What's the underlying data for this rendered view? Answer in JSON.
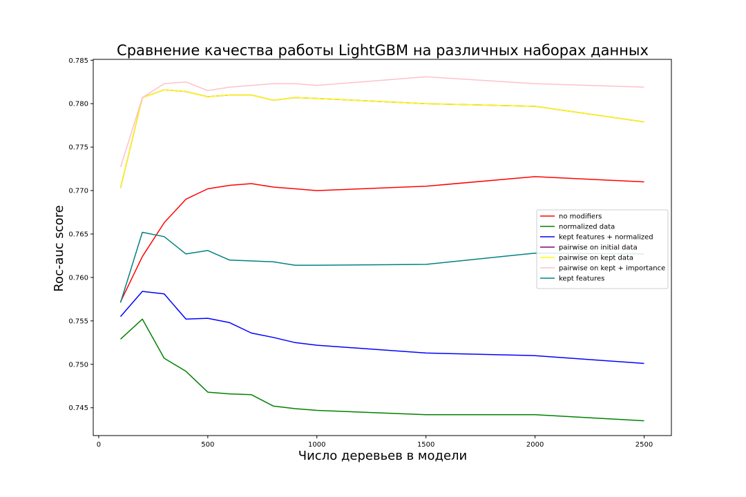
{
  "chart_data": {
    "type": "line",
    "title": "Сравнение качества работы LightGBM на различных наборах данных",
    "xlabel": "Число деревьев в модели",
    "ylabel": "Roc-auc score",
    "xlim": [
      -25,
      2625
    ],
    "ylim": [
      0.7418,
      0.7851
    ],
    "xticks": [
      0,
      500,
      1000,
      1500,
      2000,
      2500
    ],
    "xtick_labels": [
      "0",
      "500",
      "1000",
      "1500",
      "2000",
      "2500"
    ],
    "yticks": [
      0.745,
      0.75,
      0.755,
      0.76,
      0.765,
      0.77,
      0.775,
      0.78,
      0.785
    ],
    "ytick_labels": [
      "0.745",
      "0.750",
      "0.755",
      "0.760",
      "0.765",
      "0.770",
      "0.775",
      "0.780",
      "0.785"
    ],
    "grid": false,
    "legend_position": "center-right",
    "x": [
      100,
      200,
      300,
      400,
      500,
      600,
      700,
      800,
      900,
      1000,
      1500,
      2000,
      2500
    ],
    "series": [
      {
        "name": "no modifiers",
        "color": "#ff0000",
        "values": [
          0.7572,
          0.7624,
          0.7663,
          0.769,
          0.7702,
          0.7706,
          0.7708,
          0.7704,
          0.7702,
          0.77,
          0.7705,
          0.7716,
          0.771
        ]
      },
      {
        "name": "normalized data",
        "color": "#008000",
        "values": [
          0.7529,
          0.7552,
          0.7507,
          0.7492,
          0.7468,
          0.7466,
          0.7465,
          0.7452,
          0.7449,
          0.7447,
          0.7442,
          0.7442,
          0.7435
        ]
      },
      {
        "name": "kept features + normalized",
        "color": "#0000ff",
        "values": [
          0.7555,
          0.7584,
          0.7581,
          0.7552,
          0.7553,
          0.7548,
          0.7536,
          0.7531,
          0.7525,
          0.7522,
          0.7513,
          0.751,
          0.7501
        ]
      },
      {
        "name": "pairwise on initial data",
        "color": "#800080",
        "values": [
          0.7703,
          0.7807,
          0.7816,
          0.7814,
          0.7808,
          0.781,
          0.781,
          0.7804,
          0.7807,
          0.7806,
          0.78,
          0.7797,
          0.7779
        ]
      },
      {
        "name": "pairwise on kept data",
        "color": "#ffff00",
        "values": [
          0.7703,
          0.7807,
          0.7816,
          0.7814,
          0.7808,
          0.781,
          0.781,
          0.7804,
          0.7807,
          0.7806,
          0.78,
          0.7797,
          0.7779
        ]
      },
      {
        "name": "pairwise on kept + importance",
        "color": "#ffc0cb",
        "values": [
          0.7727,
          0.7807,
          0.7823,
          0.7825,
          0.7815,
          0.7819,
          0.7821,
          0.7823,
          0.7823,
          0.7821,
          0.7831,
          0.7823,
          0.7819
        ]
      },
      {
        "name": "kept features",
        "color": "#008080",
        "values": [
          0.7571,
          0.7652,
          0.7647,
          0.7627,
          0.7631,
          0.762,
          0.7619,
          0.7618,
          0.7614,
          0.7614,
          0.7615,
          0.7628,
          0.7627
        ]
      }
    ]
  }
}
